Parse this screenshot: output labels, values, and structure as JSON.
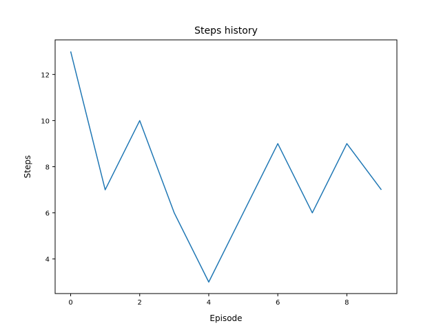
{
  "chart_data": {
    "type": "line",
    "title": "Steps history",
    "xlabel": "Episode",
    "ylabel": "Steps",
    "xlim": [
      -0.45,
      9.45
    ],
    "ylim": [
      2.5,
      13.5
    ],
    "x_ticks": [
      0,
      2,
      4,
      6,
      8
    ],
    "y_ticks": [
      4,
      6,
      8,
      10,
      12
    ],
    "grid": false,
    "legend": "none",
    "series": [
      {
        "x": [
          0,
          1,
          2,
          3,
          4,
          5,
          6,
          7,
          8,
          9
        ],
        "values": [
          13,
          7,
          10,
          6,
          3,
          6,
          9,
          6,
          9,
          7
        ],
        "color": "#1f77b4"
      }
    ]
  }
}
